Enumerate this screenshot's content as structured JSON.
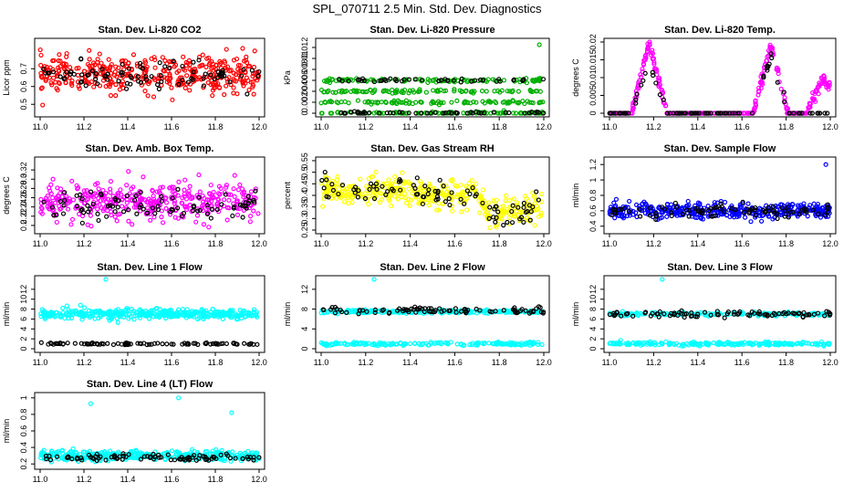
{
  "page_title": "SPL_070711  2.5 Min. Std. Dev. Diagnostics",
  "chart_data": [
    {
      "type": "scatter",
      "title": "Stan. Dev. Li-820 CO2",
      "ylabel": "Licor ppm",
      "xlim": [
        11.0,
        12.0
      ],
      "ylim": [
        0.45,
        0.85
      ],
      "xticks": [
        11.0,
        11.2,
        11.4,
        11.6,
        11.8,
        12.0
      ],
      "yticks": [
        0.5,
        0.6,
        0.7
      ],
      "series": [
        {
          "color": "#ff0000",
          "values": {
            "center": 0.67,
            "spread": 0.05,
            "min": 0.45,
            "max": 0.8
          }
        },
        {
          "color": "#000000",
          "values": {
            "center": 0.66,
            "spread": 0.04
          }
        }
      ]
    },
    {
      "type": "scatter",
      "title": "Stan. Dev. Li-820 Pressure",
      "ylabel": "kPa",
      "xlim": [
        11.0,
        12.0
      ],
      "ylim": [
        0.0,
        0.013
      ],
      "xticks": [
        11.0,
        11.2,
        11.4,
        11.6,
        11.8,
        12.0
      ],
      "yticks": [
        0.0,
        0.002,
        0.004,
        0.006,
        0.008,
        0.01,
        0.012
      ],
      "series": [
        {
          "color": "#00b000",
          "values": {
            "levels": [
              0.0,
              0.002,
              0.004,
              0.006
            ],
            "max": 0.0125
          }
        },
        {
          "color": "#000000",
          "values": {
            "levels": [
              0.0,
              0.006
            ]
          }
        }
      ]
    },
    {
      "type": "scatter",
      "title": "Stan. Dev. Li-820 Temp.",
      "ylabel": "degrees C",
      "xlim": [
        11.0,
        12.0
      ],
      "ylim": [
        0.0,
        0.02
      ],
      "xticks": [
        11.0,
        11.2,
        11.4,
        11.6,
        11.8,
        12.0
      ],
      "yticks": [
        0.0,
        0.005,
        0.01,
        0.015,
        0.02
      ],
      "series": [
        {
          "color": "#ff00ff",
          "values": {
            "peaks": [
              [
                11.18,
                0.02
              ],
              [
                11.73,
                0.019
              ],
              [
                11.97,
                0.01
              ]
            ]
          }
        },
        {
          "color": "#000000",
          "values": {
            "peaks": [
              [
                11.18,
                0.015
              ],
              [
                11.73,
                0.016
              ]
            ]
          }
        }
      ]
    },
    {
      "type": "scatter",
      "title": "Stan. Dev. Amb. Box Temp.",
      "ylabel": "degrees C",
      "xlim": [
        11.0,
        12.0
      ],
      "ylim": [
        0.19,
        0.34
      ],
      "xticks": [
        11.0,
        11.2,
        11.4,
        11.6,
        11.8,
        12.0
      ],
      "yticks": [
        0.2,
        0.22,
        0.24,
        0.26,
        0.28,
        0.3,
        0.32
      ],
      "series": [
        {
          "color": "#ff00ff",
          "values": {
            "center": 0.25,
            "spread": 0.02
          }
        },
        {
          "color": "#000000",
          "values": {
            "center": 0.245,
            "spread": 0.015
          }
        }
      ]
    },
    {
      "type": "scatter",
      "title": "Stan. Dev. Gas Stream RH",
      "ylabel": "percent",
      "xlim": [
        11.0,
        12.0
      ],
      "ylim": [
        0.25,
        0.55
      ],
      "xticks": [
        11.0,
        11.2,
        11.4,
        11.6,
        11.8,
        12.0
      ],
      "yticks": [
        0.25,
        0.3,
        0.35,
        0.4,
        0.45,
        0.5,
        0.55
      ],
      "series": [
        {
          "color": "#ffff00",
          "values": {
            "trend": [
              [
                11.0,
                0.43
              ],
              [
                11.7,
                0.4
              ],
              [
                11.75,
                0.32
              ],
              [
                12.0,
                0.34
              ]
            ],
            "spread": 0.03
          }
        },
        {
          "color": "#000000",
          "values": {
            "trend": [
              [
                11.0,
                0.43
              ],
              [
                11.7,
                0.4
              ],
              [
                11.75,
                0.32
              ],
              [
                12.0,
                0.34
              ]
            ],
            "spread": 0.03
          }
        }
      ]
    },
    {
      "type": "scatter",
      "title": "Stan. Dev. Sample Flow",
      "ylabel": "ml/min",
      "xlim": [
        11.0,
        12.0
      ],
      "ylim": [
        0.35,
        1.25
      ],
      "xticks": [
        11.0,
        11.2,
        11.4,
        11.6,
        11.8,
        12.0
      ],
      "yticks": [
        0.4,
        0.6,
        0.8,
        1.0,
        1.2
      ],
      "series": [
        {
          "color": "#0000ff",
          "values": {
            "center": 0.6,
            "spread": 0.05,
            "max": 1.2
          }
        },
        {
          "color": "#000000",
          "values": {
            "center": 0.6,
            "spread": 0.04
          }
        }
      ]
    },
    {
      "type": "scatter",
      "title": "Stan. Dev. Line 1 Flow",
      "ylabel": "ml/min",
      "xlim": [
        11.0,
        12.0
      ],
      "ylim": [
        0,
        14
      ],
      "xticks": [
        11.0,
        11.2,
        11.4,
        11.6,
        11.8,
        12.0
      ],
      "yticks": [
        0,
        2,
        4,
        6,
        8,
        10,
        12
      ],
      "series": [
        {
          "color": "#00ffff",
          "values": {
            "center": 7.0,
            "spread": 0.5,
            "outliers": [
              14
            ]
          }
        },
        {
          "color": "#000000",
          "values": {
            "center": 1.0,
            "spread": 0.1
          }
        }
      ]
    },
    {
      "type": "scatter",
      "title": "Stan. Dev. Line 2 Flow",
      "ylabel": "ml/min",
      "xlim": [
        11.0,
        12.0
      ],
      "ylim": [
        0,
        14
      ],
      "xticks": [
        11.0,
        11.2,
        11.4,
        11.6,
        11.8,
        12.0
      ],
      "yticks": [
        0,
        4,
        8,
        12
      ],
      "series": [
        {
          "color": "#00ffff",
          "values": {
            "levels": [
              7.5,
              1.0
            ],
            "outliers": [
              14
            ]
          }
        },
        {
          "color": "#000000",
          "values": {
            "center": 7.8,
            "spread": 0.3
          }
        }
      ]
    },
    {
      "type": "scatter",
      "title": "Stan. Dev. Line 3 Flow",
      "ylabel": "ml/min",
      "xlim": [
        11.0,
        12.0
      ],
      "ylim": [
        0,
        14
      ],
      "xticks": [
        11.0,
        11.2,
        11.4,
        11.6,
        11.8,
        12.0
      ],
      "yticks": [
        0,
        2,
        4,
        6,
        8,
        10,
        12
      ],
      "series": [
        {
          "color": "#00ffff",
          "values": {
            "levels": [
              7.0,
              1.0
            ],
            "outliers": [
              14
            ]
          }
        },
        {
          "color": "#000000",
          "values": {
            "center": 7.0,
            "spread": 0.3
          }
        }
      ]
    },
    {
      "type": "scatter",
      "title": "Stan. Dev. Line 4 (LT) Flow",
      "ylabel": "ml/min",
      "xlim": [
        11.0,
        12.0
      ],
      "ylim": [
        0.18,
        1.02
      ],
      "xticks": [
        11.0,
        11.2,
        11.4,
        11.6,
        11.8,
        12.0
      ],
      "yticks": [
        0.2,
        0.4,
        0.6,
        0.8,
        1.0
      ],
      "series": [
        {
          "color": "#00ffff",
          "values": {
            "center": 0.3,
            "spread": 0.03,
            "outliers": [
              0.93,
              1.0,
              0.82
            ]
          }
        },
        {
          "color": "#000000",
          "values": {
            "center": 0.28,
            "spread": 0.02
          }
        }
      ]
    }
  ]
}
